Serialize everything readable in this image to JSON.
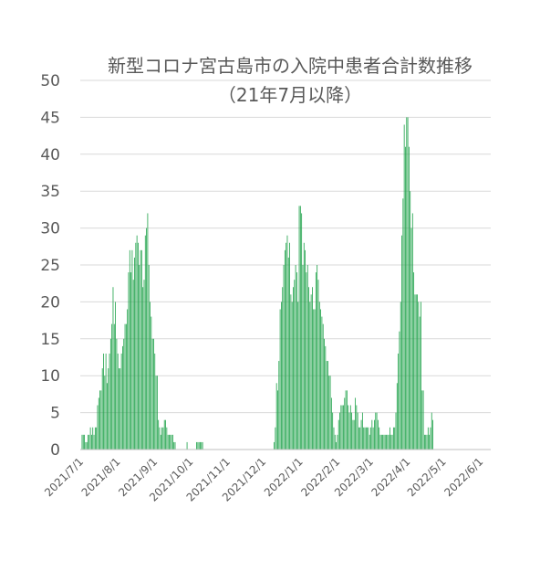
{
  "chart_data": {
    "type": "bar",
    "title": "新型コロナ宮古島市の入院中患者合計数推移",
    "subtitle": "（21年7月以降）",
    "xlabel": "",
    "ylabel": "",
    "ylim": [
      0,
      50
    ],
    "y_ticks": [
      "0",
      "5",
      "10",
      "15",
      "20",
      "25",
      "30",
      "35",
      "40",
      "45",
      "50"
    ],
    "x_ticks": [
      "2021/7/1",
      "2021/8/1",
      "2021/9/1",
      "2021/10/1",
      "2021/11/1",
      "2021/12/1",
      "2022/1/1",
      "2022/2/1",
      "2022/3/1",
      "2022/4/1",
      "2022/5/1",
      "2022/6/1"
    ],
    "grid": true,
    "legend": "none",
    "bar_color": "#1fa24a",
    "x_start": "2021/7/1",
    "x_end": "2022/6/9",
    "values": [
      0,
      2,
      2,
      2,
      1,
      1,
      2,
      2,
      3,
      2,
      3,
      2,
      3,
      3,
      6,
      7,
      8,
      8,
      11,
      13,
      10,
      13,
      9,
      11,
      13,
      15,
      17,
      22,
      17,
      20,
      15,
      13,
      11,
      11,
      13,
      14,
      15,
      17,
      17,
      19,
      24,
      27,
      24,
      27,
      23,
      26,
      28,
      29,
      28,
      25,
      27,
      27,
      22,
      23,
      29,
      30,
      32,
      25,
      20,
      18,
      15,
      15,
      13,
      10,
      10,
      4,
      3,
      2,
      3,
      3,
      4,
      4,
      3,
      2,
      2,
      2,
      2,
      2,
      1,
      1,
      0,
      0,
      0,
      0,
      0,
      0,
      0,
      0,
      0,
      1,
      0,
      0,
      0,
      0,
      0,
      0,
      0,
      1,
      1,
      1,
      1,
      1,
      1,
      0,
      0,
      0,
      0,
      0,
      0,
      0,
      0,
      0,
      0,
      0,
      0,
      0,
      0,
      0,
      0,
      0,
      0,
      0,
      0,
      0,
      0,
      0,
      0,
      0,
      0,
      0,
      0,
      0,
      0,
      0,
      0,
      0,
      0,
      0,
      0,
      0,
      0,
      0,
      0,
      0,
      0,
      0,
      0,
      0,
      0,
      0,
      0,
      0,
      0,
      0,
      0,
      0,
      0,
      0,
      0,
      0,
      0,
      0,
      1,
      3,
      9,
      8,
      12,
      19,
      20,
      22,
      25,
      27,
      28,
      29,
      26,
      28,
      21,
      20,
      22,
      23,
      25,
      24,
      20,
      33,
      33,
      32,
      25,
      28,
      27,
      24,
      25,
      22,
      20,
      21,
      22,
      19,
      19,
      24,
      25,
      23,
      20,
      19,
      18,
      17,
      15,
      14,
      12,
      12,
      10,
      10,
      7,
      5,
      3,
      2,
      1,
      2,
      4,
      5,
      6,
      6,
      6,
      7,
      8,
      8,
      6,
      5,
      6,
      5,
      4,
      4,
      7,
      6,
      5,
      3,
      3,
      4,
      5,
      3,
      3,
      3,
      3,
      3,
      2,
      3,
      4,
      3,
      4,
      5,
      5,
      4,
      3,
      2,
      2,
      2,
      2,
      2,
      2,
      2,
      2,
      3,
      2,
      2,
      3,
      3,
      5,
      9,
      13,
      16,
      20,
      29,
      34,
      44,
      41,
      45,
      45,
      41,
      35,
      30,
      32,
      24,
      21,
      21,
      21,
      20,
      18,
      20,
      8,
      8,
      2,
      2,
      2,
      3,
      2,
      3,
      5,
      4
    ]
  }
}
